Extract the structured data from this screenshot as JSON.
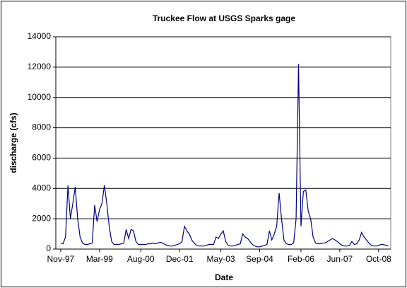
{
  "chart_data": {
    "type": "line",
    "title": "Truckee Flow at USGS Sparks gage",
    "x_label": "Date",
    "y_label": "discharge (cfs)",
    "x": [
      "1997-11",
      "1997-12",
      "1998-01",
      "1998-02",
      "1998-03",
      "1998-04",
      "1998-05",
      "1998-06",
      "1998-07",
      "1998-08",
      "1998-09",
      "1998-10",
      "1998-11",
      "1998-12",
      "1999-01",
      "1999-02",
      "1999-03",
      "1999-04",
      "1999-05",
      "1999-06",
      "1999-07",
      "1999-08",
      "1999-09",
      "1999-10",
      "1999-11",
      "1999-12",
      "2000-01",
      "2000-02",
      "2000-03",
      "2000-04",
      "2000-05",
      "2000-06",
      "2000-07",
      "2000-08",
      "2000-09",
      "2000-10",
      "2000-11",
      "2000-12",
      "2001-01",
      "2001-02",
      "2001-03",
      "2001-04",
      "2001-05",
      "2001-06",
      "2001-07",
      "2001-08",
      "2001-09",
      "2001-10",
      "2001-11",
      "2001-12",
      "2002-01",
      "2002-02",
      "2002-03",
      "2002-04",
      "2002-05",
      "2002-06",
      "2002-07",
      "2002-08",
      "2002-09",
      "2002-10",
      "2002-11",
      "2002-12",
      "2003-01",
      "2003-02",
      "2003-03",
      "2003-04",
      "2003-05",
      "2003-06",
      "2003-07",
      "2003-08",
      "2003-09",
      "2003-10",
      "2003-11",
      "2003-12",
      "2004-01",
      "2004-02",
      "2004-03",
      "2004-04",
      "2004-05",
      "2004-06",
      "2004-07",
      "2004-08",
      "2004-09",
      "2004-10",
      "2004-11",
      "2004-12",
      "2005-01",
      "2005-02",
      "2005-03",
      "2005-04",
      "2005-05",
      "2005-06",
      "2005-07",
      "2005-08",
      "2005-09",
      "2005-10",
      "2005-11",
      "2005-12",
      "2006-01",
      "2006-02",
      "2006-03",
      "2006-04",
      "2006-05",
      "2006-06",
      "2006-07",
      "2006-08",
      "2006-09",
      "2006-10",
      "2006-11",
      "2006-12",
      "2007-01",
      "2007-02",
      "2007-03",
      "2007-04",
      "2007-05",
      "2007-06",
      "2007-07",
      "2007-08",
      "2007-09",
      "2007-10",
      "2007-11",
      "2007-12",
      "2008-01",
      "2008-02",
      "2008-03",
      "2008-04",
      "2008-05",
      "2008-06",
      "2008-07",
      "2008-08",
      "2008-09",
      "2008-10",
      "2008-11",
      "2008-12",
      "2009-01",
      "2009-02"
    ],
    "series": [
      {
        "name": "discharge",
        "color": "#000080",
        "values": [
          400,
          350,
          800,
          4200,
          2000,
          3000,
          4100,
          2000,
          800,
          400,
          300,
          300,
          350,
          400,
          2900,
          1800,
          2600,
          3000,
          4200,
          3000,
          1500,
          500,
          300,
          300,
          300,
          350,
          400,
          1300,
          700,
          1300,
          1200,
          500,
          300,
          300,
          300,
          300,
          350,
          350,
          400,
          350,
          400,
          450,
          400,
          300,
          250,
          200,
          200,
          250,
          300,
          350,
          500,
          1500,
          1200,
          1000,
          600,
          400,
          250,
          200,
          200,
          200,
          250,
          300,
          300,
          300,
          800,
          700,
          1000,
          1200,
          500,
          250,
          200,
          200,
          250,
          300,
          350,
          1000,
          800,
          700,
          500,
          300,
          200,
          150,
          150,
          200,
          250,
          300,
          1200,
          600,
          1000,
          1500,
          3700,
          2000,
          600,
          350,
          300,
          300,
          400,
          2000,
          12200,
          1500,
          3800,
          3900,
          2500,
          2000,
          800,
          400,
          350,
          350,
          400,
          400,
          500,
          600,
          700,
          600,
          500,
          350,
          250,
          200,
          200,
          250,
          500,
          300,
          350,
          600,
          1100,
          800,
          600,
          400,
          250,
          200,
          200,
          250,
          300,
          300,
          250,
          200
        ]
      }
    ],
    "xlim": [
      "1997-09",
      "2009-03"
    ],
    "xticks": [
      {
        "value": "1997-11",
        "label": "Nov-97"
      },
      {
        "value": "1999-03",
        "label": "Mar-99"
      },
      {
        "value": "2000-08",
        "label": "Aug-00"
      },
      {
        "value": "2001-12",
        "label": "Dec-01"
      },
      {
        "value": "2003-05",
        "label": "May-03"
      },
      {
        "value": "2004-09",
        "label": "Sep-04"
      },
      {
        "value": "2006-02",
        "label": "Feb-06"
      },
      {
        "value": "2007-06",
        "label": "Jun-07"
      },
      {
        "value": "2008-10",
        "label": "Oct-08"
      }
    ],
    "ylim": [
      0,
      14000
    ],
    "yticks": [
      0,
      2000,
      4000,
      6000,
      8000,
      10000,
      12000,
      14000
    ],
    "grid": true
  }
}
